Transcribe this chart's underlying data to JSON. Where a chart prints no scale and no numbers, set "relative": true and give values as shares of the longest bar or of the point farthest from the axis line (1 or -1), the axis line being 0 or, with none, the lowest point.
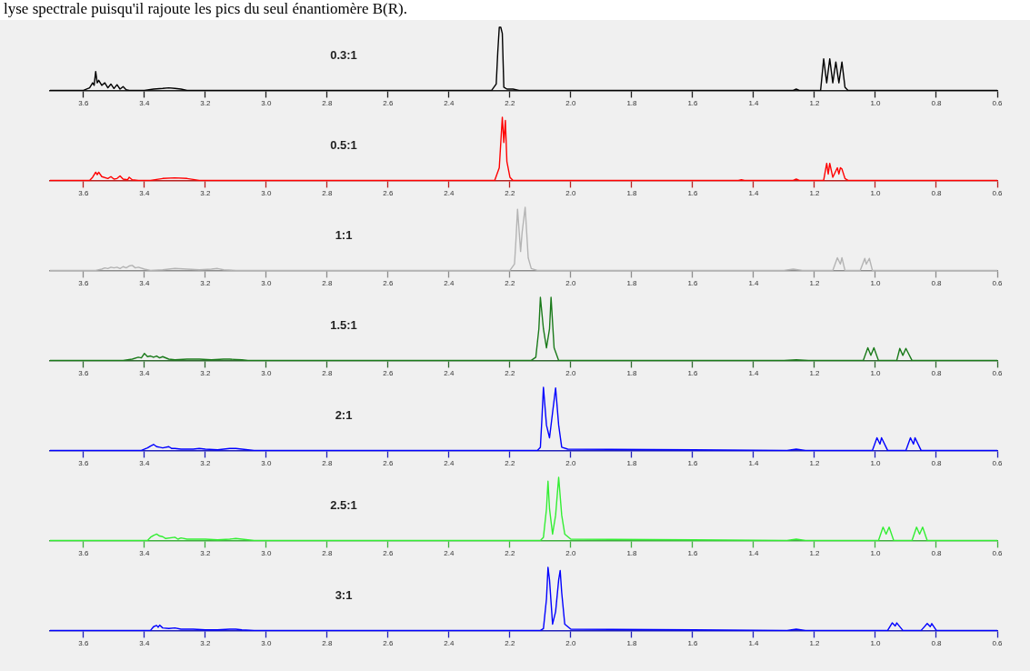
{
  "chart_data": [
    {
      "type": "line",
      "relative": true,
      "title": "0.3:1",
      "annotations": [
        "lyse spectrale puisqu'il rajoute les pics du seul énantiomère B(R)."
      ],
      "xlim": [
        3.71,
        0.6
      ],
      "xticks": [
        3.6,
        3.4,
        3.2,
        {
          "value": 3,
          "label": "3.0"
        },
        2.8,
        2.6,
        2.4,
        2.2,
        {
          "value": 2,
          "label": "2.0"
        },
        1.8,
        1.6,
        1.4,
        1.2,
        {
          "value": 1,
          "label": "1.0"
        },
        0.8,
        0.6
      ],
      "grid": false,
      "legend": false,
      "marker": "none",
      "line_style": "solid",
      "series": [
        {
          "color": "#000000",
          "x": [
            3.71,
            3.6,
            3.58,
            3.57,
            3.565,
            3.56,
            3.555,
            3.55,
            3.54,
            3.53,
            3.52,
            3.51,
            3.5,
            3.49,
            3.48,
            3.47,
            3.46,
            3.45,
            3.4,
            3.37,
            3.34,
            3.32,
            3.3,
            3.28,
            3.26,
            2.26,
            2.245,
            2.24,
            2.235,
            2.23,
            2.225,
            2.22,
            2.21,
            2.19,
            2.17,
            1.27,
            1.26,
            1.25,
            1.18,
            1.17,
            1.16,
            1.15,
            1.14,
            1.13,
            1.12,
            1.11,
            1.1,
            1.09,
            0.6
          ],
          "values": [
            0,
            0,
            0.04,
            0.12,
            0.08,
            0.3,
            0.12,
            0.16,
            0.08,
            0.12,
            0.04,
            0.1,
            0.03,
            0.09,
            0.02,
            0.06,
            0.01,
            0,
            0,
            0.02,
            0.03,
            0.04,
            0.03,
            0.02,
            0,
            0,
            0.1,
            0.6,
            1,
            1,
            0.9,
            0.05,
            0.02,
            0.02,
            0,
            0,
            0.02,
            0,
            0,
            0.5,
            0.12,
            0.5,
            0.12,
            0.45,
            0.12,
            0.45,
            0.05,
            0,
            0
          ]
        }
      ]
    },
    {
      "type": "line",
      "relative": true,
      "title": "0.5:1",
      "xlim": [
        3.71,
        0.6
      ],
      "xticks": [
        3.6,
        3.4,
        3.2,
        {
          "value": 3,
          "label": "3.0"
        },
        2.8,
        2.6,
        2.4,
        2.2,
        {
          "value": 2,
          "label": "2.0"
        },
        1.8,
        1.6,
        1.4,
        1.2,
        {
          "value": 1,
          "label": "1.0"
        },
        0.8,
        0.6
      ],
      "grid": false,
      "legend": false,
      "marker": "none",
      "line_style": "solid",
      "series": [
        {
          "color": "#ff0000",
          "x": [
            3.71,
            3.58,
            3.57,
            3.56,
            3.555,
            3.55,
            3.54,
            3.52,
            3.51,
            3.5,
            3.49,
            3.48,
            3.47,
            3.455,
            3.45,
            3.44,
            3.42,
            3.38,
            3.34,
            3.3,
            3.26,
            3.22,
            2.25,
            2.235,
            2.23,
            2.225,
            2.22,
            2.215,
            2.21,
            2.2,
            2.19,
            1.45,
            1.44,
            1.43,
            1.27,
            1.26,
            1.25,
            1.17,
            1.16,
            1.155,
            1.15,
            1.14,
            1.125,
            1.12,
            1.115,
            1.11,
            1.1,
            1.09,
            0.6
          ],
          "values": [
            0,
            0,
            0.05,
            0.13,
            0.09,
            0.13,
            0.06,
            0.03,
            0.06,
            0.02,
            0.03,
            0.07,
            0.02,
            0.01,
            0.05,
            0.01,
            0,
            0,
            0.03,
            0.04,
            0.03,
            0,
            0,
            0.2,
            0.6,
            1,
            0.6,
            0.95,
            0.3,
            0.05,
            0,
            0,
            0.01,
            0,
            0,
            0.02,
            0,
            0,
            0.27,
            0.1,
            0.27,
            0.05,
            0.2,
            0.1,
            0.2,
            0.18,
            0.03,
            0,
            0
          ]
        }
      ]
    },
    {
      "type": "line",
      "relative": true,
      "title": "1:1",
      "xlim": [
        3.71,
        0.6
      ],
      "xticks": [
        3.6,
        3.4,
        3.2,
        {
          "value": 3,
          "label": "3.0"
        },
        2.8,
        2.6,
        2.4,
        2.2,
        {
          "value": 2,
          "label": "2.0"
        },
        1.8,
        1.6,
        1.4,
        1.2,
        {
          "value": 1,
          "label": "1.0"
        },
        0.8,
        0.6
      ],
      "grid": false,
      "legend": false,
      "marker": "none",
      "line_style": "solid",
      "series": [
        {
          "color": "#b4b4b4",
          "x": [
            3.71,
            3.56,
            3.54,
            3.53,
            3.52,
            3.51,
            3.5,
            3.49,
            3.48,
            3.47,
            3.46,
            3.45,
            3.44,
            3.43,
            3.42,
            3.4,
            3.38,
            3.34,
            3.3,
            3.26,
            3.22,
            3.18,
            3.16,
            3.14,
            3.1,
            2.2,
            2.185,
            2.18,
            2.175,
            2.165,
            2.16,
            2.15,
            2.14,
            2.13,
            2.11,
            1.3,
            1.27,
            1.24,
            1.14,
            1.125,
            1.115,
            1.11,
            1.1,
            1.05,
            1.035,
            1.03,
            1.02,
            1.01,
            0.6
          ],
          "values": [
            0,
            0,
            0.02,
            0.04,
            0.03,
            0.05,
            0.04,
            0.05,
            0.03,
            0.06,
            0.04,
            0.07,
            0.08,
            0.04,
            0.05,
            0.02,
            0,
            0.01,
            0.03,
            0.02,
            0.01,
            0.02,
            0.03,
            0.01,
            0,
            0,
            0.1,
            0.5,
            0.97,
            0.3,
            0.6,
            1,
            0.2,
            0.03,
            0,
            0,
            0.02,
            0,
            0,
            0.2,
            0.1,
            0.2,
            0,
            0,
            0.19,
            0.1,
            0.19,
            0,
            0
          ]
        }
      ]
    },
    {
      "type": "line",
      "relative": true,
      "title": "1.5:1",
      "xlim": [
        3.71,
        0.6
      ],
      "xticks": [
        3.6,
        3.4,
        3.2,
        {
          "value": 3,
          "label": "3.0"
        },
        2.8,
        2.6,
        2.4,
        2.2,
        {
          "value": 2,
          "label": "2.0"
        },
        1.8,
        1.6,
        1.4,
        1.2,
        {
          "value": 1,
          "label": "1.0"
        },
        0.8,
        0.6
      ],
      "grid": false,
      "legend": false,
      "marker": "none",
      "line_style": "solid",
      "series": [
        {
          "color": "#1a7a1a",
          "x": [
            3.71,
            3.47,
            3.44,
            3.42,
            3.41,
            3.4,
            3.39,
            3.38,
            3.37,
            3.36,
            3.35,
            3.34,
            3.32,
            3.3,
            3.26,
            3.22,
            3.18,
            3.14,
            3.12,
            3.08,
            3.06,
            2.13,
            2.115,
            2.105,
            2.1,
            2.09,
            2.08,
            2.07,
            2.065,
            2.055,
            2.04,
            1.3,
            1.26,
            1.22,
            1.04,
            1.025,
            1.015,
            1.005,
            0.99,
            0.93,
            0.92,
            0.91,
            0.9,
            0.88,
            0.6
          ],
          "values": [
            0,
            0,
            0.02,
            0.05,
            0.04,
            0.11,
            0.06,
            0.07,
            0.05,
            0.07,
            0.04,
            0.06,
            0.02,
            0.01,
            0.02,
            0.02,
            0.01,
            0.02,
            0.02,
            0.01,
            0,
            0,
            0.05,
            0.5,
            1,
            0.5,
            0.2,
            0.5,
            1,
            0.2,
            0,
            0,
            0.01,
            0,
            0,
            0.2,
            0.08,
            0.2,
            0,
            0,
            0.19,
            0.08,
            0.19,
            0,
            0
          ]
        }
      ]
    },
    {
      "type": "line",
      "relative": true,
      "title": "2:1",
      "xlim": [
        3.71,
        0.6
      ],
      "xticks": [
        3.6,
        3.4,
        3.2,
        {
          "value": 3,
          "label": "3.0"
        },
        2.8,
        2.6,
        2.4,
        2.2,
        {
          "value": 2,
          "label": "2.0"
        },
        1.8,
        1.6,
        1.4,
        1.2,
        {
          "value": 1,
          "label": "1.0"
        },
        0.8,
        0.6
      ],
      "grid": false,
      "legend": false,
      "marker": "none",
      "line_style": "solid",
      "series": [
        {
          "color": "#0000ff",
          "x": [
            3.71,
            3.41,
            3.39,
            3.38,
            3.37,
            3.36,
            3.35,
            3.34,
            3.32,
            3.31,
            3.3,
            3.28,
            3.24,
            3.22,
            3.2,
            3.16,
            3.12,
            3.1,
            3.08,
            3.04,
            2.11,
            2.1,
            2.095,
            2.09,
            2.08,
            2.07,
            2.06,
            2.05,
            2.04,
            2.03,
            2.01,
            1.29,
            1.26,
            1.23,
            1.01,
            0.995,
            0.985,
            0.98,
            0.96,
            0.9,
            0.885,
            0.875,
            0.87,
            0.85,
            0.6
          ],
          "values": [
            0,
            0,
            0.04,
            0.07,
            0.095,
            0.06,
            0.05,
            0.04,
            0.06,
            0.03,
            0.03,
            0.02,
            0.02,
            0.03,
            0.02,
            0.01,
            0.03,
            0.03,
            0.02,
            0,
            0,
            0.05,
            0.5,
            1,
            0.4,
            0.2,
            0.6,
            0.99,
            0.4,
            0.05,
            0.02,
            0,
            0.02,
            0,
            0,
            0.2,
            0.1,
            0.2,
            0,
            0,
            0.2,
            0.1,
            0.2,
            0,
            0
          ]
        }
      ]
    },
    {
      "type": "line",
      "relative": true,
      "title": "2.5:1",
      "xlim": [
        3.71,
        0.6
      ],
      "xticks": [
        3.6,
        3.4,
        3.2,
        {
          "value": 3,
          "label": "3.0"
        },
        2.8,
        2.6,
        2.4,
        2.2,
        {
          "value": 2,
          "label": "2.0"
        },
        1.8,
        1.6,
        1.4,
        1.2,
        {
          "value": 1,
          "label": "1.0"
        },
        0.8,
        0.6
      ],
      "grid": false,
      "legend": false,
      "marker": "none",
      "line_style": "solid",
      "series": [
        {
          "color": "#33ee33",
          "x": [
            3.71,
            3.39,
            3.38,
            3.37,
            3.36,
            3.35,
            3.34,
            3.33,
            3.3,
            3.29,
            3.28,
            3.26,
            3.22,
            3.2,
            3.16,
            3.12,
            3.1,
            3.08,
            3.04,
            2.1,
            2.09,
            2.08,
            2.075,
            2.07,
            2.06,
            2.05,
            2.045,
            2.04,
            2.03,
            2.02,
            2.0,
            1.29,
            1.26,
            1.23,
            0.99,
            0.975,
            0.965,
            0.955,
            0.94,
            0.88,
            0.865,
            0.855,
            0.845,
            0.83,
            0.6
          ],
          "values": [
            0,
            0,
            0.05,
            0.08,
            0.1,
            0.07,
            0.06,
            0.03,
            0.05,
            0.02,
            0.04,
            0.02,
            0.02,
            0.02,
            0.01,
            0.02,
            0.03,
            0.02,
            0,
            0,
            0.05,
            0.5,
            0.94,
            0.5,
            0.1,
            0.4,
            0.7,
            1,
            0.4,
            0.1,
            0.02,
            0,
            0.02,
            0,
            0,
            0.21,
            0.1,
            0.21,
            0,
            0,
            0.21,
            0.1,
            0.21,
            0,
            0
          ]
        }
      ]
    },
    {
      "type": "line",
      "relative": true,
      "title": "3:1",
      "xlim": [
        3.71,
        0.6
      ],
      "xticks": [
        3.6,
        3.4,
        3.2,
        {
          "value": 3,
          "label": "3.0"
        },
        2.8,
        2.6,
        2.4,
        2.2,
        {
          "value": 2,
          "label": "2.0"
        },
        1.8,
        1.6,
        1.4,
        1.2,
        {
          "value": 1,
          "label": "1.0"
        },
        0.8,
        0.6
      ],
      "grid": false,
      "legend": false,
      "marker": "none",
      "line_style": "solid",
      "series": [
        {
          "color": "#0000ff",
          "x": [
            3.71,
            3.38,
            3.37,
            3.36,
            3.355,
            3.35,
            3.34,
            3.32,
            3.3,
            3.28,
            3.24,
            3.2,
            3.16,
            3.12,
            3.1,
            3.08,
            3.04,
            2.1,
            2.09,
            2.08,
            2.075,
            2.07,
            2.06,
            2.05,
            2.04,
            2.035,
            2.03,
            2.02,
            2.0,
            1.29,
            1.26,
            1.23,
            0.96,
            0.945,
            0.935,
            0.93,
            0.91,
            0.85,
            0.83,
            0.82,
            0.815,
            0.8,
            0.6
          ],
          "values": [
            0,
            0,
            0.06,
            0.08,
            0.05,
            0.084,
            0.04,
            0.03,
            0.04,
            0.02,
            0.02,
            0.01,
            0.01,
            0.02,
            0.02,
            0.01,
            0,
            0,
            0.03,
            0.5,
            1,
            0.8,
            0.1,
            0.3,
            0.8,
            0.95,
            0.6,
            0.1,
            0.02,
            0,
            0.02,
            0,
            0,
            0.12,
            0.07,
            0.12,
            0,
            0,
            0.11,
            0.06,
            0.11,
            0,
            0
          ]
        }
      ]
    }
  ]
}
